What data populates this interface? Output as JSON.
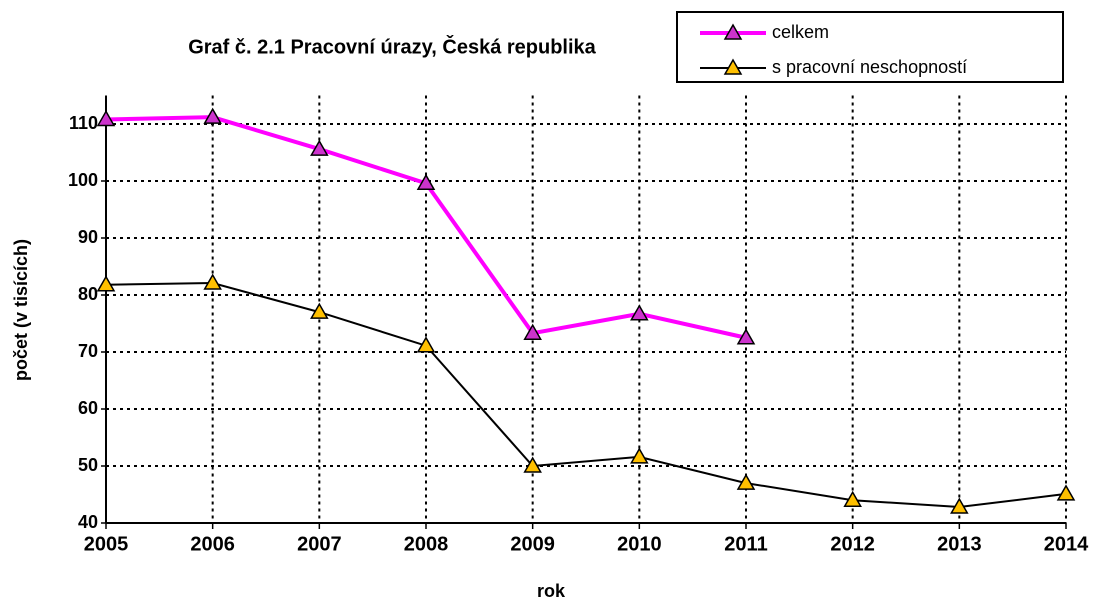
{
  "chart_data": {
    "type": "line",
    "title": "Graf č. 2.1  Pracovní úrazy, Česká republika",
    "xlabel": "rok",
    "ylabel": "počet (v tisících)",
    "x": [
      2005,
      2006,
      2007,
      2008,
      2009,
      2010,
      2011,
      2012,
      2013,
      2014
    ],
    "series": [
      {
        "name": "celkem",
        "color": "#ff00ff",
        "marker_color": "#cc33cc",
        "values": [
          110.8,
          111.2,
          105.6,
          99.6,
          73.3,
          76.7,
          72.5,
          null,
          null,
          null
        ]
      },
      {
        "name": "s pracovní neschopností",
        "color": "#000000",
        "marker_color": "#ffc000",
        "values": [
          81.8,
          82.1,
          77.0,
          71.1,
          50.0,
          51.6,
          47.0,
          44.0,
          42.8,
          45.1
        ]
      }
    ],
    "xlim": [
      2005,
      2014
    ],
    "xticks": [
      2005,
      2006,
      2007,
      2008,
      2009,
      2010,
      2011,
      2012,
      2013,
      2014
    ],
    "ylim": [
      40,
      115
    ],
    "yticks": [
      40,
      50,
      60,
      70,
      80,
      90,
      100,
      110
    ],
    "grid": true,
    "legend": "top-right"
  }
}
